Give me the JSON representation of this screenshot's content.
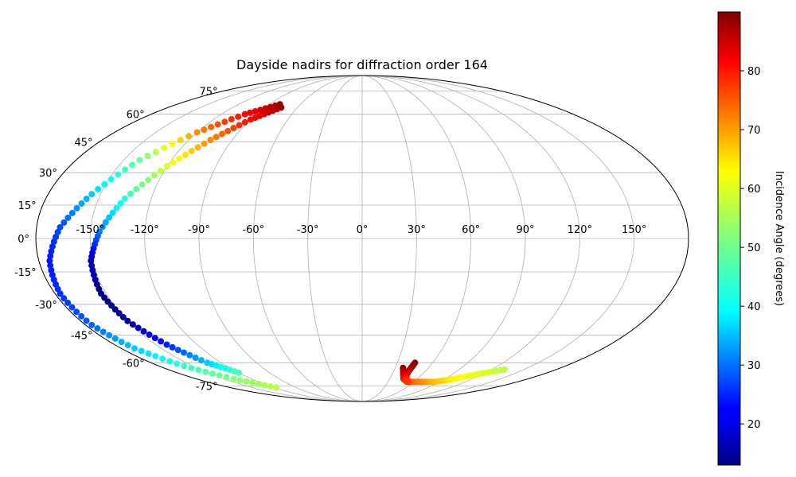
{
  "chart_data": {
    "type": "scatter",
    "projection": "mollweide",
    "title": "Dayside nadirs for diffraction order 164",
    "colormap": "jet",
    "grid": true,
    "x_tick_labels": [
      "-150°",
      "-120°",
      "-90°",
      "-60°",
      "-30°",
      "0°",
      "30°",
      "60°",
      "90°",
      "120°",
      "150°"
    ],
    "x_tick_values": [
      -150,
      -120,
      -90,
      -60,
      -30,
      0,
      30,
      60,
      90,
      120,
      150
    ],
    "y_tick_labels": [
      "-75°",
      "-60°",
      "-45°",
      "-30°",
      "-15°",
      "0°",
      "15°",
      "30°",
      "45°",
      "60°",
      "75°"
    ],
    "y_tick_values": [
      -75,
      -60,
      -45,
      -30,
      -15,
      0,
      15,
      30,
      45,
      60,
      75
    ],
    "colorbar": {
      "label": "Incidence Angle (degrees)",
      "range": [
        13,
        90
      ],
      "tick_values": [
        20,
        30,
        40,
        50,
        60,
        70,
        80
      ],
      "tick_labels": [
        "20",
        "30",
        "40",
        "50",
        "60",
        "70",
        "80"
      ]
    },
    "series": [
      {
        "lon": [
          -80,
          -100,
          -120,
          -140,
          -155,
          -167,
          -174,
          -177,
          -176,
          -170,
          -158,
          -140,
          -117
        ],
        "lat": [
          66,
          60,
          50,
          36,
          20,
          5,
          -10,
          -25,
          -40,
          -52,
          -62,
          -70,
          -76
        ],
        "incidence": [
          88,
          80,
          70,
          50,
          38,
          28,
          24,
          26,
          30,
          38,
          46,
          52,
          56
        ]
      },
      {
        "lon": [
          -75,
          -90,
          -105,
          -120,
          -135,
          -145,
          -151,
          -153,
          -150,
          -142,
          -132,
          -120
        ],
        "lat": [
          64,
          57,
          46,
          33,
          18,
          3,
          -10,
          -25,
          -38,
          -50,
          -60,
          -66
        ],
        "incidence": [
          88,
          80,
          70,
          58,
          45,
          32,
          18,
          13,
          15,
          25,
          38,
          48
        ]
      },
      {
        "lon": [
          37,
          41,
          45,
          52,
          60,
          70,
          85,
          100,
          115,
          132
        ],
        "lat": [
          -63,
          -67,
          -70,
          -72,
          -72,
          -72,
          -72,
          -70,
          -67,
          -64
        ],
        "incidence": [
          90,
          85,
          81,
          76,
          73,
          70,
          66,
          62,
          59,
          56
        ]
      },
      {
        "lon": [
          45,
          44,
          45,
          48,
          54
        ],
        "lat": [
          -60,
          -65,
          -68,
          -70,
          -72
        ],
        "incidence": [
          90,
          86,
          82,
          78,
          76
        ]
      }
    ]
  }
}
